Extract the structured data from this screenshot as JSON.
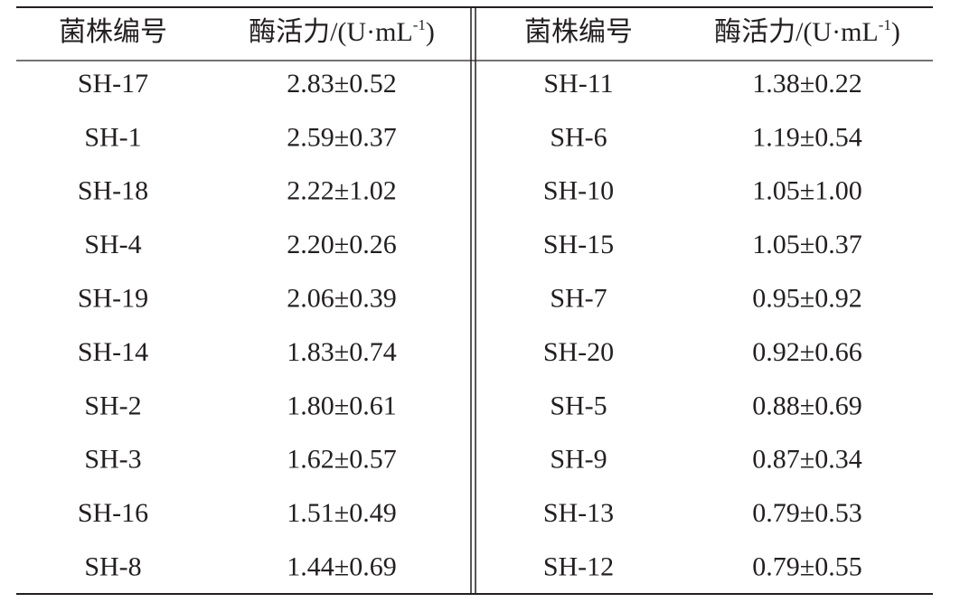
{
  "table": {
    "header": [
      {
        "label": "菌株编号"
      },
      {
        "label": "酶活力/(U·mL",
        "sup": "-1",
        "close": ")"
      },
      {
        "label": "菌株编号"
      },
      {
        "label": "酶活力/(U·mL",
        "sup": "-1",
        "close": ")"
      }
    ],
    "rows": [
      [
        "SH-17",
        "2.83±0.52",
        "SH-11",
        "1.38±0.22"
      ],
      [
        "SH-1",
        "2.59±0.37",
        "SH-6",
        "1.19±0.54"
      ],
      [
        "SH-18",
        "2.22±1.02",
        "SH-10",
        "1.05±1.00"
      ],
      [
        "SH-4",
        "2.20±0.26",
        "SH-15",
        "1.05±0.37"
      ],
      [
        "SH-19",
        "2.06±0.39",
        "SH-7",
        "0.95±0.92"
      ],
      [
        "SH-14",
        "1.83±0.74",
        "SH-20",
        "0.92±0.66"
      ],
      [
        "SH-2",
        "1.80±0.61",
        "SH-5",
        "0.88±0.69"
      ],
      [
        "SH-3",
        "1.62±0.57",
        "SH-9",
        "0.87±0.34"
      ],
      [
        "SH-16",
        "1.51±0.49",
        "SH-13",
        "0.79±0.53"
      ],
      [
        "SH-8",
        "1.44±0.69",
        "SH-12",
        "0.79±0.55"
      ]
    ]
  }
}
